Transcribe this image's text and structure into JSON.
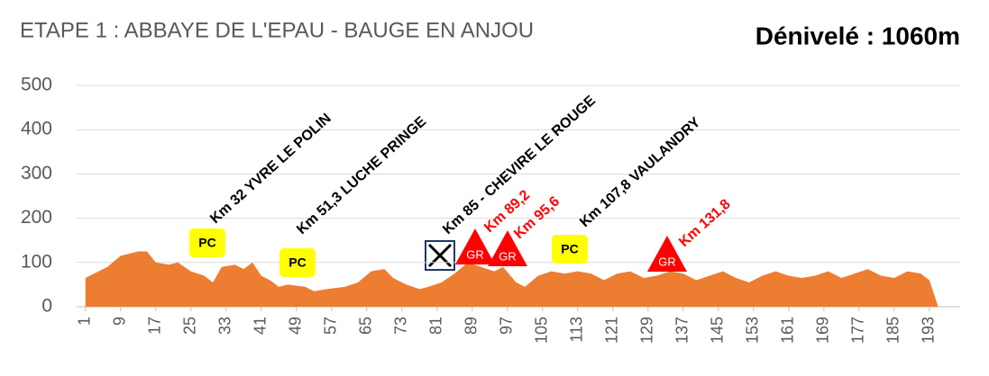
{
  "chart_data": {
    "type": "area",
    "title": "ETAPE 1 : ABBAYE DE L'EPAU - BAUGE EN ANJOU",
    "subtitle": "Dénivelé : 1060m",
    "x": [
      1,
      6,
      9,
      13,
      15,
      17,
      20,
      22,
      25,
      28,
      30,
      32,
      35,
      37,
      39,
      41,
      43,
      45,
      47,
      51,
      53,
      56,
      60,
      63,
      66,
      69,
      71,
      74,
      77,
      79,
      82,
      85,
      88,
      91,
      94,
      96,
      99,
      101,
      104,
      107,
      110,
      113,
      116,
      119,
      122,
      125,
      128,
      131,
      134,
      137,
      140,
      143,
      146,
      149,
      152,
      155,
      158,
      161,
      164,
      167,
      170,
      173,
      176,
      179,
      182,
      185,
      188,
      191,
      193,
      195
    ],
    "values": [
      65,
      90,
      115,
      125,
      125,
      100,
      95,
      100,
      80,
      70,
      55,
      90,
      95,
      85,
      100,
      70,
      60,
      45,
      50,
      45,
      35,
      40,
      45,
      55,
      80,
      85,
      65,
      50,
      40,
      45,
      55,
      75,
      100,
      90,
      80,
      90,
      55,
      45,
      70,
      80,
      75,
      80,
      75,
      60,
      75,
      80,
      65,
      70,
      80,
      75,
      60,
      70,
      80,
      65,
      55,
      70,
      80,
      70,
      65,
      70,
      80,
      65,
      75,
      85,
      70,
      65,
      80,
      75,
      60,
      0
    ],
    "color": "#ed7d31",
    "xlim": [
      -1,
      200
    ],
    "ylim": [
      0,
      500
    ],
    "xticks": [
      1,
      9,
      17,
      25,
      33,
      41,
      49,
      57,
      65,
      73,
      81,
      89,
      97,
      105,
      113,
      121,
      129,
      137,
      145,
      153,
      161,
      169,
      177,
      185,
      193
    ],
    "yticks": [
      0,
      100,
      200,
      300,
      400,
      500
    ],
    "grid": true,
    "annotations": [
      {
        "text": "Km 32  YVRE LE POLIN",
        "color": "#000000"
      },
      {
        "text": "Km 51,3 LUCHE PRINGE",
        "color": "#000000"
      },
      {
        "text": "Km 85 - CHEVIRE LE ROUGE",
        "color": "#000000"
      },
      {
        "text": "Km 107,8 VAULANDRY",
        "color": "#000000"
      },
      {
        "text": "Km 89,2",
        "color": "#ff0000"
      },
      {
        "text": "Km 95,6",
        "color": "#ff0000"
      },
      {
        "text": "Km 131,8",
        "color": "#ff0000"
      }
    ],
    "pc_markers": [
      "PC",
      "PC",
      "PC"
    ],
    "gr_markers": [
      "GR",
      "GR",
      "GR"
    ]
  }
}
